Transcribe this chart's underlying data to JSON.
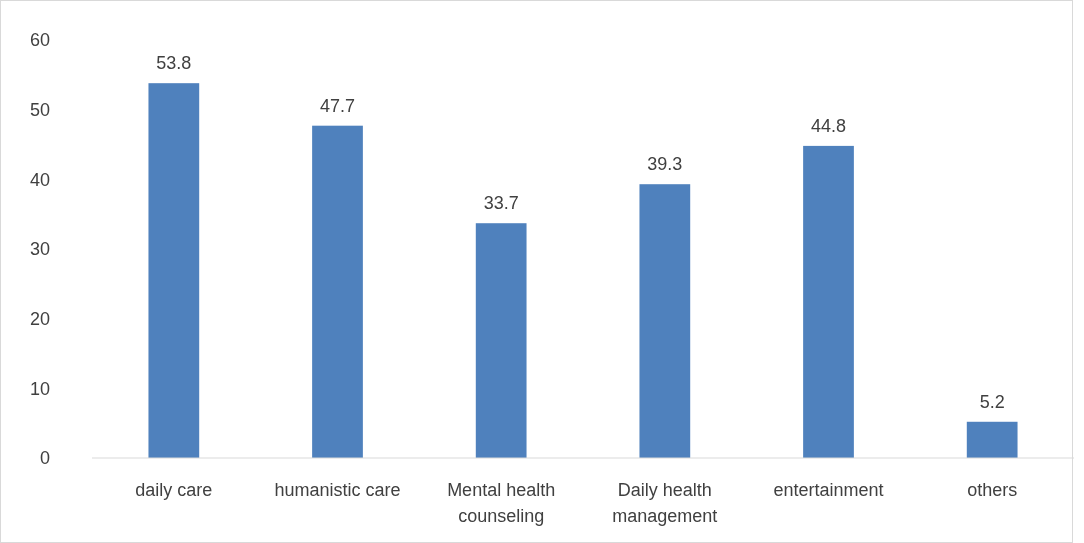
{
  "chart_data": {
    "type": "bar",
    "categories": [
      "daily care",
      "humanistic care",
      "Mental health counseling",
      "Daily health management",
      "entertainment",
      "others"
    ],
    "values": [
      53.8,
      47.7,
      33.7,
      39.3,
      44.8,
      5.2
    ],
    "color": "#4f81bd",
    "ylim": [
      0,
      60
    ],
    "yticks": [
      0,
      10,
      20,
      30,
      40,
      50,
      60
    ],
    "grid": false,
    "data_labels": true
  }
}
